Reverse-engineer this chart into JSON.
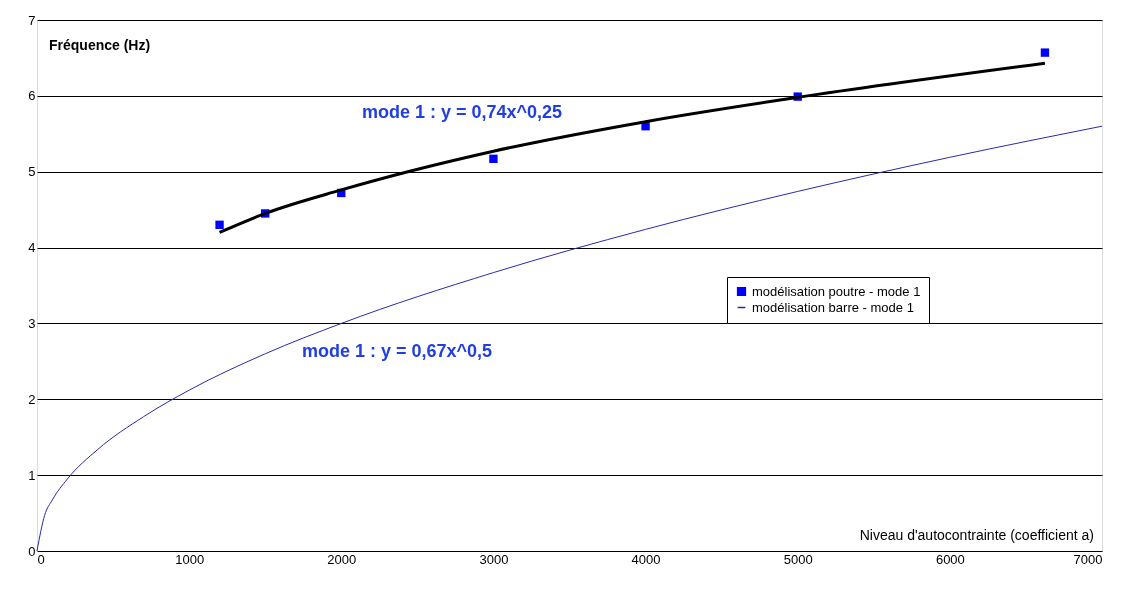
{
  "chart_data": {
    "type": "line",
    "xlabel": "Niveau d'autocontrainte (coefficient a)",
    "ylabel": "Fréquence (Hz)",
    "xlim": [
      0,
      7000
    ],
    "xticks": [
      0,
      1000,
      2000,
      3000,
      4000,
      5000,
      6000,
      7000
    ],
    "ylim": [
      0,
      7
    ],
    "yticks": [
      0,
      1,
      2,
      3,
      4,
      5,
      6,
      7
    ],
    "grid": "y",
    "legend": "right",
    "series": [
      {
        "name": "modélisation poutre - mode 1",
        "type": "scatter",
        "marker": "square",
        "color": "#0000ff",
        "x": [
          1200,
          1500,
          2000,
          3000,
          4000,
          5000,
          6625
        ],
        "values": [
          4.3,
          4.45,
          4.72,
          5.17,
          5.6,
          5.99,
          6.57
        ]
      },
      {
        "name": "modélisation barre - mode 1",
        "color": "#2a2aa8",
        "x": [
          0,
          50,
          100,
          200,
          400,
          700,
          1000,
          1500,
          2000,
          3000,
          4000,
          5000,
          6000,
          7000
        ],
        "values": [
          0,
          0.47,
          0.67,
          0.95,
          1.34,
          1.77,
          2.12,
          2.6,
          3.0,
          3.67,
          4.24,
          4.74,
          5.19,
          5.6
        ]
      },
      {
        "color": "#000000",
        "x": [
          1200,
          1500,
          2000,
          3000,
          4000,
          5000,
          6625
        ],
        "values": [
          4.2,
          4.45,
          4.76,
          5.27,
          5.66,
          5.98,
          6.43
        ]
      }
    ],
    "annotations": [
      "mode 1 : y = 0,74x^0,25",
      "mode 1 : y = 0,67x^0,5"
    ]
  }
}
